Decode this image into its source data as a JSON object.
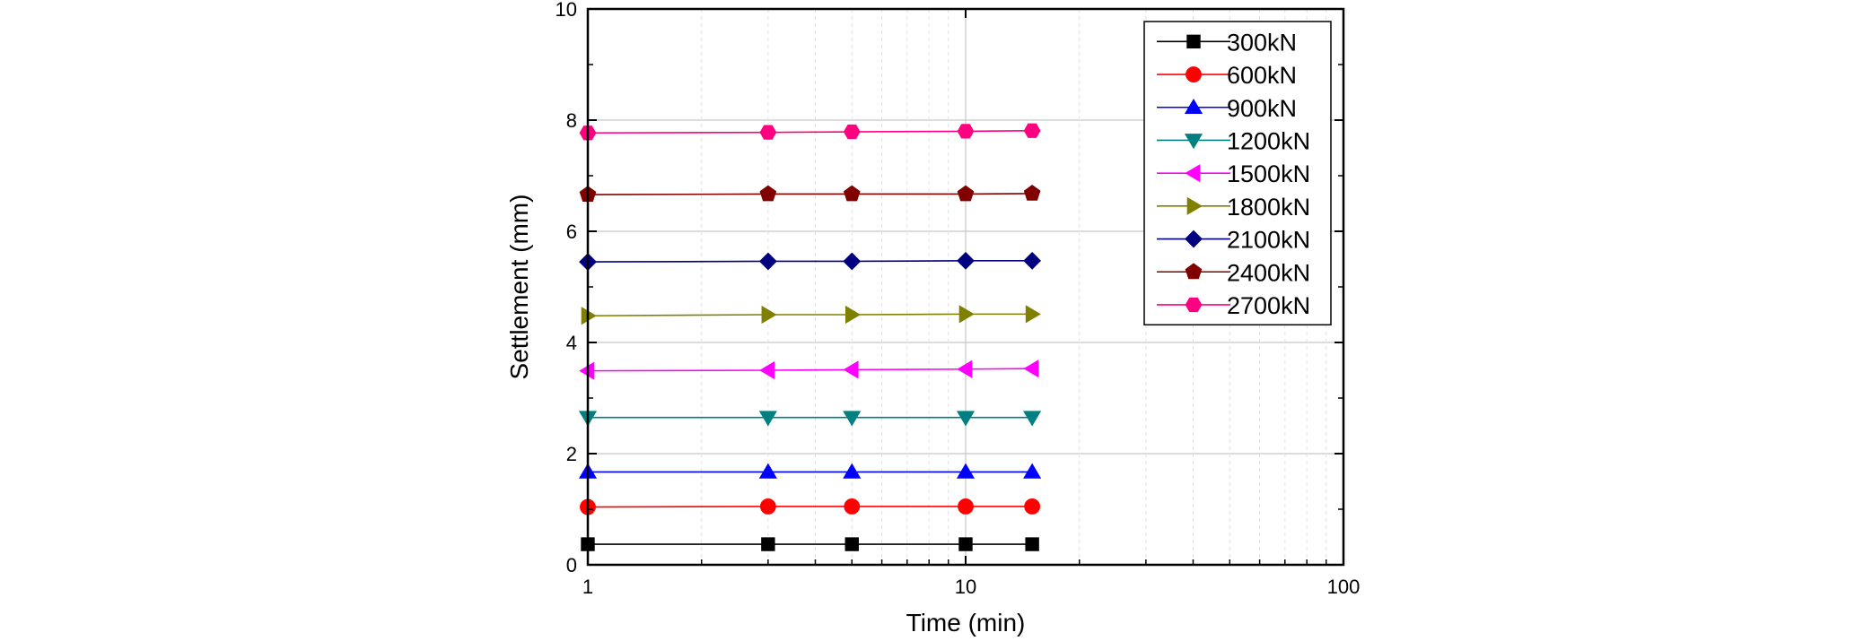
{
  "chart_data": {
    "type": "line",
    "title": "",
    "xlabel": "Time (min)",
    "ylabel": "Settlement (mm)",
    "xscale": "log",
    "xlim": [
      1,
      100
    ],
    "ylim": [
      0,
      10
    ],
    "xticks": [
      1,
      10,
      100
    ],
    "xtick_labels": [
      "1",
      "10",
      "100"
    ],
    "yticks": [
      0,
      2,
      4,
      6,
      8,
      10
    ],
    "ytick_labels": [
      "0",
      "2",
      "4",
      "6",
      "8",
      "10"
    ],
    "grid": true,
    "legend_position": "top-right",
    "x": [
      1,
      3,
      5,
      10,
      15
    ],
    "series": [
      {
        "name": "300kN",
        "color": "#000000",
        "marker": "square",
        "values": [
          0.37,
          0.37,
          0.37,
          0.37,
          0.37
        ]
      },
      {
        "name": "600kN",
        "color": "#ff0000",
        "marker": "circle",
        "values": [
          1.04,
          1.05,
          1.05,
          1.05,
          1.05
        ]
      },
      {
        "name": "900kN",
        "color": "#0000ff",
        "marker": "triangle-up",
        "values": [
          1.67,
          1.67,
          1.67,
          1.67,
          1.67
        ]
      },
      {
        "name": "1200kN",
        "color": "#008080",
        "marker": "triangle-down",
        "values": [
          2.65,
          2.65,
          2.65,
          2.65,
          2.65
        ]
      },
      {
        "name": "1500kN",
        "color": "#ff00ff",
        "marker": "triangle-left",
        "values": [
          3.49,
          3.5,
          3.51,
          3.52,
          3.53
        ]
      },
      {
        "name": "1800kN",
        "color": "#808000",
        "marker": "triangle-right",
        "values": [
          4.48,
          4.5,
          4.5,
          4.51,
          4.51
        ]
      },
      {
        "name": "2100kN",
        "color": "#000080",
        "marker": "diamond",
        "values": [
          5.45,
          5.46,
          5.46,
          5.47,
          5.47
        ]
      },
      {
        "name": "2400kN",
        "color": "#800000",
        "marker": "pentagon",
        "values": [
          6.66,
          6.67,
          6.67,
          6.67,
          6.68
        ]
      },
      {
        "name": "2700kN",
        "color": "#ff0080",
        "marker": "hexagon",
        "values": [
          7.77,
          7.78,
          7.79,
          7.8,
          7.81
        ]
      }
    ]
  }
}
